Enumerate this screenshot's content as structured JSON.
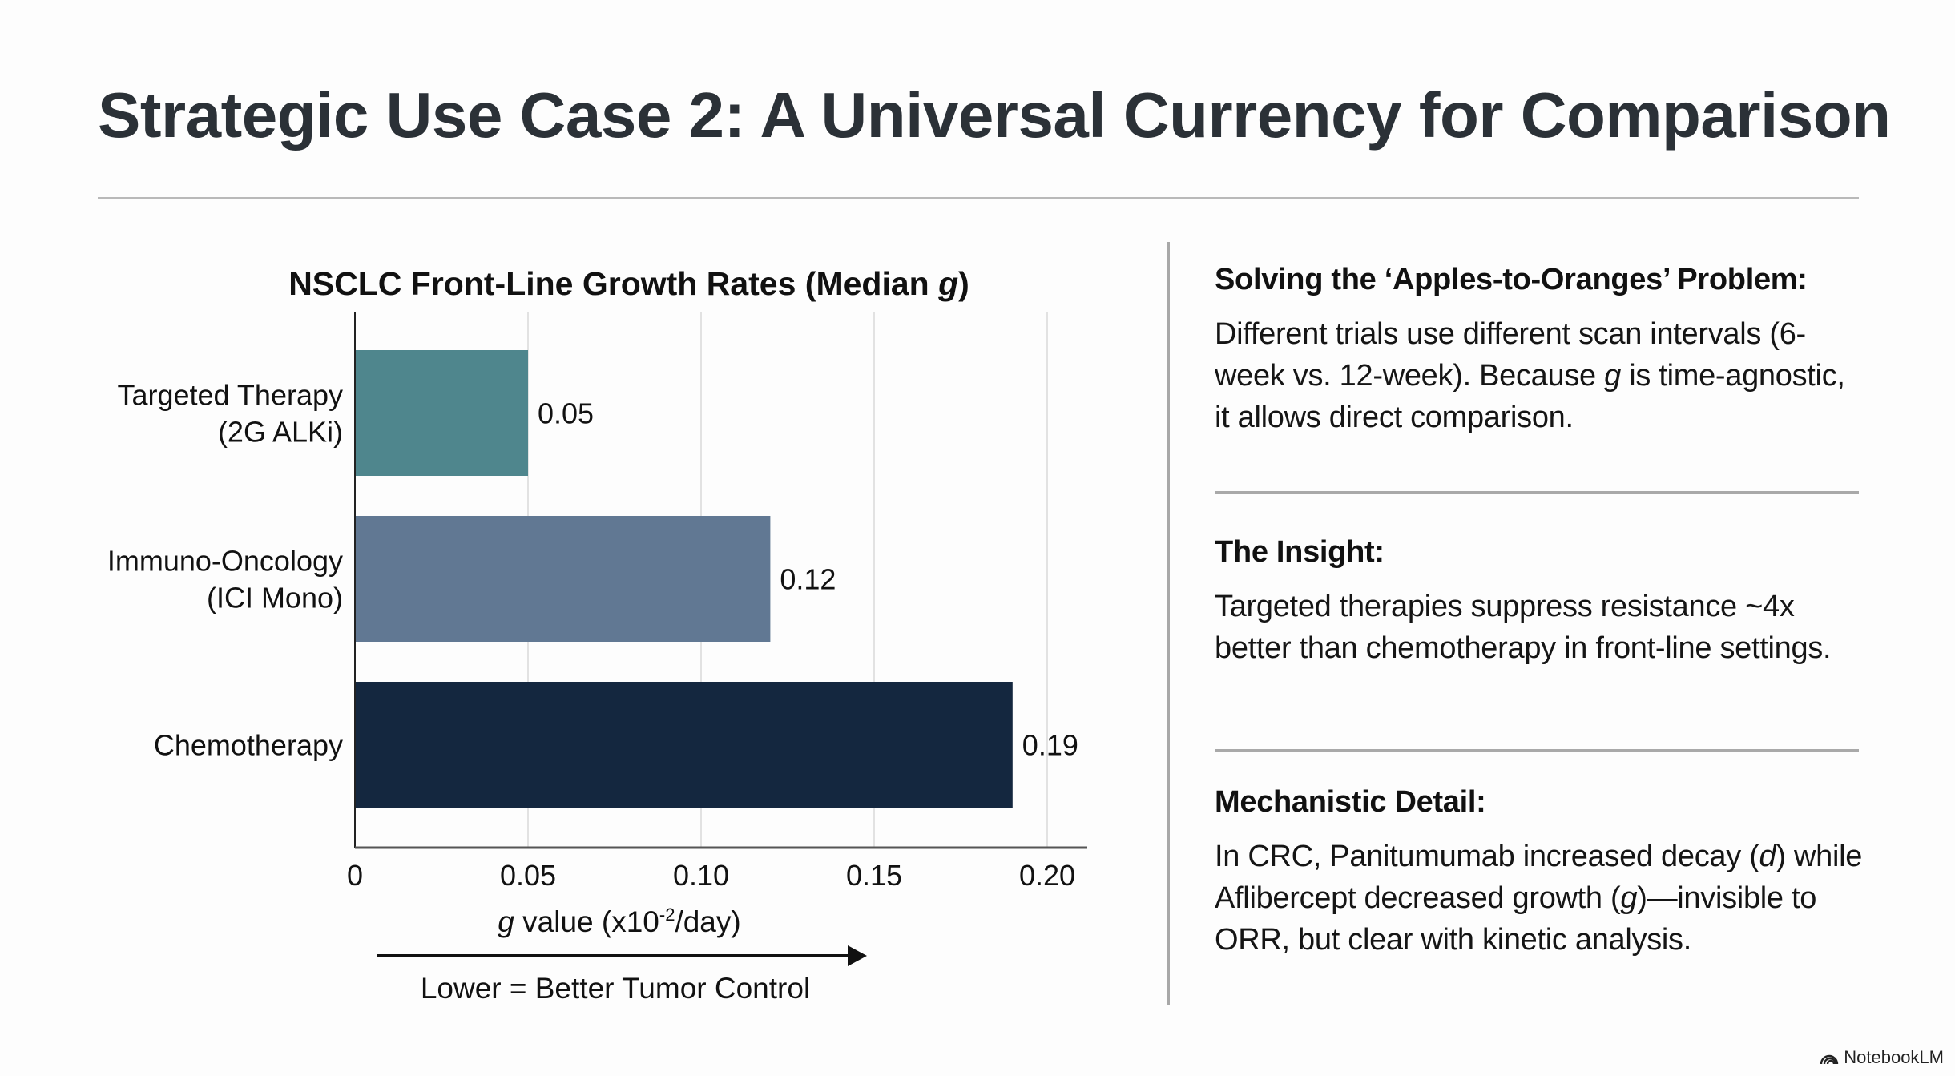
{
  "slide": {
    "title": "Strategic Use Case 2: A Universal Currency for Comparison",
    "brand": "NotebookLM",
    "brand_icon": "notebooklm-logo-icon"
  },
  "chart_data": {
    "type": "bar",
    "orientation": "horizontal",
    "title": "NSCLC Front-Line Growth Rates (Median g)",
    "title_parts": {
      "prefix": "NSCLC Front-Line Growth Rates (Median ",
      "italic": "g",
      "suffix": ")"
    },
    "categories": [
      {
        "line1": "Targeted Therapy",
        "line2": "(2G ALKi)"
      },
      {
        "line1": "Immuno-Oncology",
        "line2": "(ICI Mono)"
      },
      {
        "line1": "Chemotherapy",
        "line2": ""
      }
    ],
    "values": [
      0.05,
      0.12,
      0.19
    ],
    "value_labels": [
      "0.05",
      "0.12",
      "0.19"
    ],
    "colors": [
      "#4f868d",
      "#617893",
      "#14273f"
    ],
    "xlabel": "g value (x10-2/day)",
    "xlabel_parts": {
      "italic": "g",
      "main": " value (x10",
      "sup": "-2",
      "suffix": "/day)"
    },
    "ylabel": "",
    "xlim": [
      0,
      0.21
    ],
    "xticks": [
      0,
      0.05,
      0.1,
      0.15,
      0.2
    ],
    "xtick_labels": [
      "0",
      "0.05",
      "0.10",
      "0.15",
      "0.20"
    ],
    "grid": "vertical",
    "legend": "none",
    "annotation": "Lower = Better Tumor Control"
  },
  "panel": {
    "sections": [
      {
        "heading": "Solving the ‘Apples-to-Oranges’ Problem:",
        "body_before": "Different trials use different scan intervals (6-week vs. 12-week). Because ",
        "body_italic": "g",
        "body_after": " is time-agnostic, it allows direct comparison."
      },
      {
        "heading": "The Insight:",
        "body_before": "Targeted therapies suppress resistance ~4x better than chemotherapy in front-line settings.",
        "body_italic": "",
        "body_after": ""
      },
      {
        "heading": "Mechanistic Detail:",
        "body_before": "In CRC, Panitumumab increased decay (",
        "body_italic": "d",
        "body_after": ") while Aflibercept decreased growth (",
        "body_italic2": "g",
        "body_after2": ")—invisible to ORR, but clear with kinetic analysis."
      }
    ]
  }
}
